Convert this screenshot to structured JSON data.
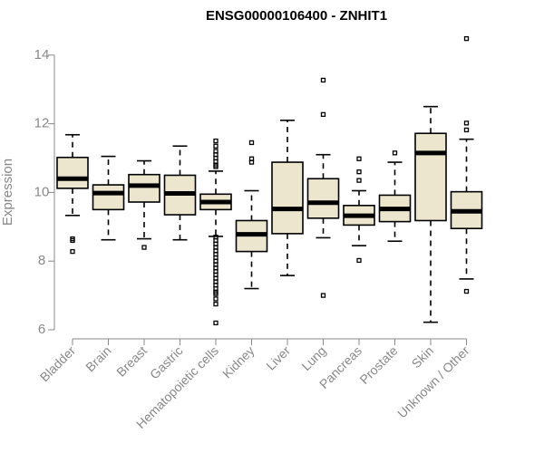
{
  "chart_data": {
    "type": "boxplot",
    "title": "ENSG00000106400 - ZNHIT1",
    "ylabel": "Expression",
    "xlabel": "",
    "ylim": [
      6,
      14.5
    ],
    "yticks": [
      6,
      8,
      10,
      12,
      14
    ],
    "box_fill": "#ede6cf",
    "categories": [
      "Bladder",
      "Brain",
      "Breast",
      "Gastric",
      "Hematopoietic cells",
      "Kidney",
      "Liver",
      "Lung",
      "Pancreas",
      "Prostate",
      "Skin",
      "Unknown / Other"
    ],
    "boxes": [
      {
        "name": "Bladder",
        "whisker_low": 9.33,
        "q1": 10.12,
        "median": 10.4,
        "q3": 11.02,
        "whisker_high": 11.68,
        "outliers": [
          8.65,
          8.6,
          8.28
        ]
      },
      {
        "name": "Brain",
        "whisker_low": 8.62,
        "q1": 9.5,
        "median": 9.98,
        "q3": 10.22,
        "whisker_high": 11.05,
        "outliers": []
      },
      {
        "name": "Breast",
        "whisker_low": 8.65,
        "q1": 9.72,
        "median": 10.2,
        "q3": 10.52,
        "whisker_high": 10.92,
        "outliers": [
          8.4
        ]
      },
      {
        "name": "Gastric",
        "whisker_low": 8.62,
        "q1": 9.35,
        "median": 9.97,
        "q3": 10.5,
        "whisker_high": 11.35,
        "outliers": []
      },
      {
        "name": "Hematopoietic cells",
        "whisker_low": 8.72,
        "q1": 9.5,
        "median": 9.72,
        "q3": 9.95,
        "whisker_high": 10.62,
        "outliers": [
          11.5,
          11.35,
          11.2,
          11.1,
          11.0,
          10.9,
          10.8,
          10.75,
          8.7,
          8.6,
          8.5,
          8.4,
          8.3,
          8.2,
          8.1,
          8.0,
          7.9,
          7.8,
          7.7,
          7.6,
          7.5,
          7.4,
          7.3,
          7.2,
          7.1,
          7.05,
          6.9,
          6.75,
          6.2
        ]
      },
      {
        "name": "Kidney",
        "whisker_low": 7.2,
        "q1": 8.28,
        "median": 8.78,
        "q3": 9.18,
        "whisker_high": 10.05,
        "outliers": [
          11.45,
          10.98,
          10.88
        ]
      },
      {
        "name": "Liver",
        "whisker_low": 7.58,
        "q1": 8.8,
        "median": 9.52,
        "q3": 10.88,
        "whisker_high": 12.1,
        "outliers": []
      },
      {
        "name": "Lung",
        "whisker_low": 8.68,
        "q1": 9.25,
        "median": 9.7,
        "q3": 10.4,
        "whisker_high": 11.1,
        "outliers": [
          13.27,
          12.27,
          7.0
        ]
      },
      {
        "name": "Pancreas",
        "whisker_low": 8.45,
        "q1": 9.05,
        "median": 9.32,
        "q3": 9.62,
        "whisker_high": 10.05,
        "outliers": [
          10.98,
          10.6,
          10.35,
          8.02
        ]
      },
      {
        "name": "Prostate",
        "whisker_low": 8.58,
        "q1": 9.15,
        "median": 9.52,
        "q3": 9.92,
        "whisker_high": 10.88,
        "outliers": [
          11.15
        ]
      },
      {
        "name": "Skin",
        "whisker_low": 6.22,
        "q1": 9.18,
        "median": 11.15,
        "q3": 11.72,
        "whisker_high": 12.5,
        "outliers": []
      },
      {
        "name": "Unknown / Other",
        "whisker_low": 7.48,
        "q1": 8.95,
        "median": 9.45,
        "q3": 10.02,
        "whisker_high": 11.55,
        "outliers": [
          14.48,
          12.02,
          11.82,
          7.12
        ]
      }
    ]
  }
}
